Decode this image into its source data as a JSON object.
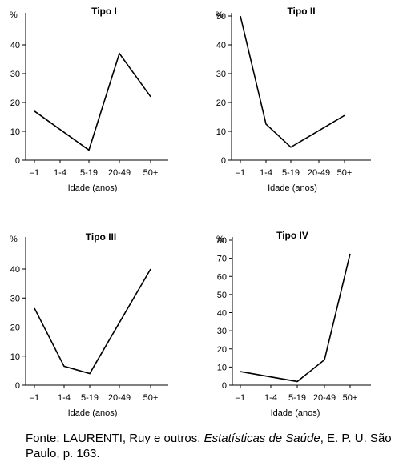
{
  "chart_data": [
    {
      "type": "line",
      "title": "Tipo I",
      "xlabel": "Idade (anos)",
      "ylabel": "%",
      "categories": [
        "–1",
        "1-4",
        "5-19",
        "20-49",
        "50+"
      ],
      "yticks": [
        0,
        10,
        20,
        30,
        40
      ],
      "ylim": [
        0,
        45
      ],
      "x": [
        "–1",
        "5-19",
        "20-49",
        "50+"
      ],
      "values": [
        17,
        3.5,
        37,
        22
      ]
    },
    {
      "type": "line",
      "title": "Tipo II",
      "xlabel": "Idade (anos)",
      "ylabel": "%",
      "categories": [
        "–1",
        "1-4",
        "5-19",
        "20-49",
        "50+"
      ],
      "yticks": [
        0,
        10,
        20,
        30,
        40,
        50
      ],
      "ylim": [
        0,
        50
      ],
      "x": [
        "–1",
        "1-4",
        "5-19",
        "50+"
      ],
      "values": [
        50,
        12.5,
        4.5,
        15.5
      ]
    },
    {
      "type": "line",
      "title": "Tipo III",
      "xlabel": "Idade (anos)",
      "ylabel": "%",
      "categories": [
        "–1",
        "1-4",
        "5-19",
        "20-49",
        "50+"
      ],
      "yticks": [
        0,
        10,
        20,
        30,
        40
      ],
      "ylim": [
        0,
        45
      ],
      "x": [
        "–1",
        "1-4",
        "5-19",
        "50+"
      ],
      "values": [
        26.5,
        6.5,
        4,
        40
      ]
    },
    {
      "type": "line",
      "title": "Tipo IV",
      "xlabel": "Idade (anos)",
      "ylabel": "%",
      "categories": [
        "–1",
        "1-4",
        "5-19",
        "20-49",
        "50+"
      ],
      "yticks": [
        0,
        10,
        20,
        30,
        40,
        50,
        60,
        70,
        80
      ],
      "ylim": [
        0,
        80
      ],
      "x": [
        "–1",
        "5-19",
        "20-49",
        "50+"
      ],
      "values": [
        7.5,
        2,
        14,
        72.5
      ]
    }
  ],
  "source": {
    "prefix": "Fonte: LAURENTI, Ruy e outros. ",
    "title": "Estatísticas de Saúde",
    "suffix": ", E. P. U. São Paulo, p. 163."
  }
}
